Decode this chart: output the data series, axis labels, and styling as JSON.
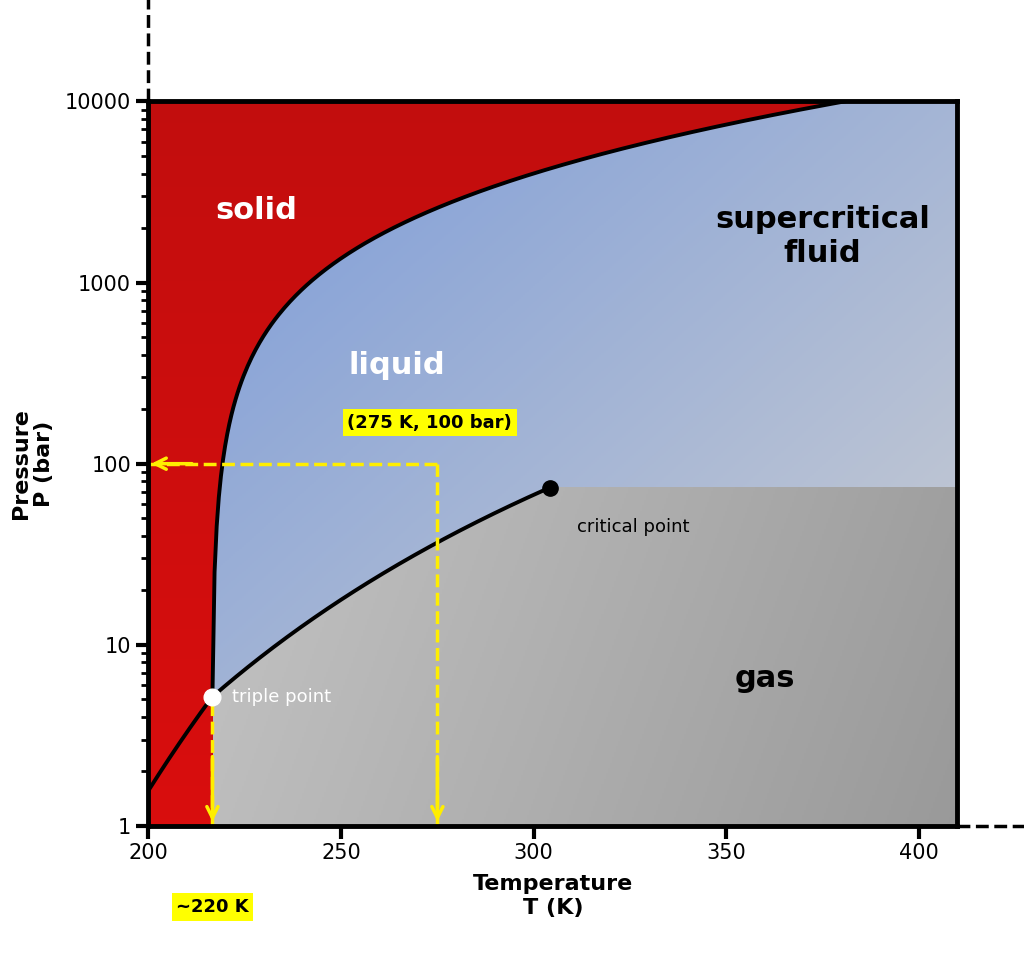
{
  "xlabel_line1": "Temperature",
  "xlabel_line2": "T (K)",
  "ylabel_line1": "Pressure",
  "ylabel_line2": "P (bar)",
  "xlim": [
    200,
    410
  ],
  "ylim_log": [
    1,
    10000
  ],
  "triple_point": [
    216.6,
    5.18
  ],
  "critical_point": [
    304.2,
    73.8
  ],
  "example_point": [
    275,
    100
  ],
  "example_label": "(275 K, 100 bar)",
  "triple_label": "triple point",
  "critical_label": "critical point",
  "solid_label": "solid",
  "liquid_label": "liquid",
  "gas_label": "gas",
  "supercritical_label": "supercritical\nfluid",
  "annotation_220k": "~220 K",
  "xticks": [
    200,
    250,
    300,
    350,
    400
  ],
  "yticks": [
    1,
    10,
    100,
    1000,
    10000
  ],
  "solid_color": "#dd1111",
  "liquid_color": "#5588ee",
  "gas_color_light": "#bbbbbb",
  "gas_color_dark": "#888888",
  "supercrit_color_topleft": "#88aadd",
  "supercrit_color_botright": "#cccccc"
}
